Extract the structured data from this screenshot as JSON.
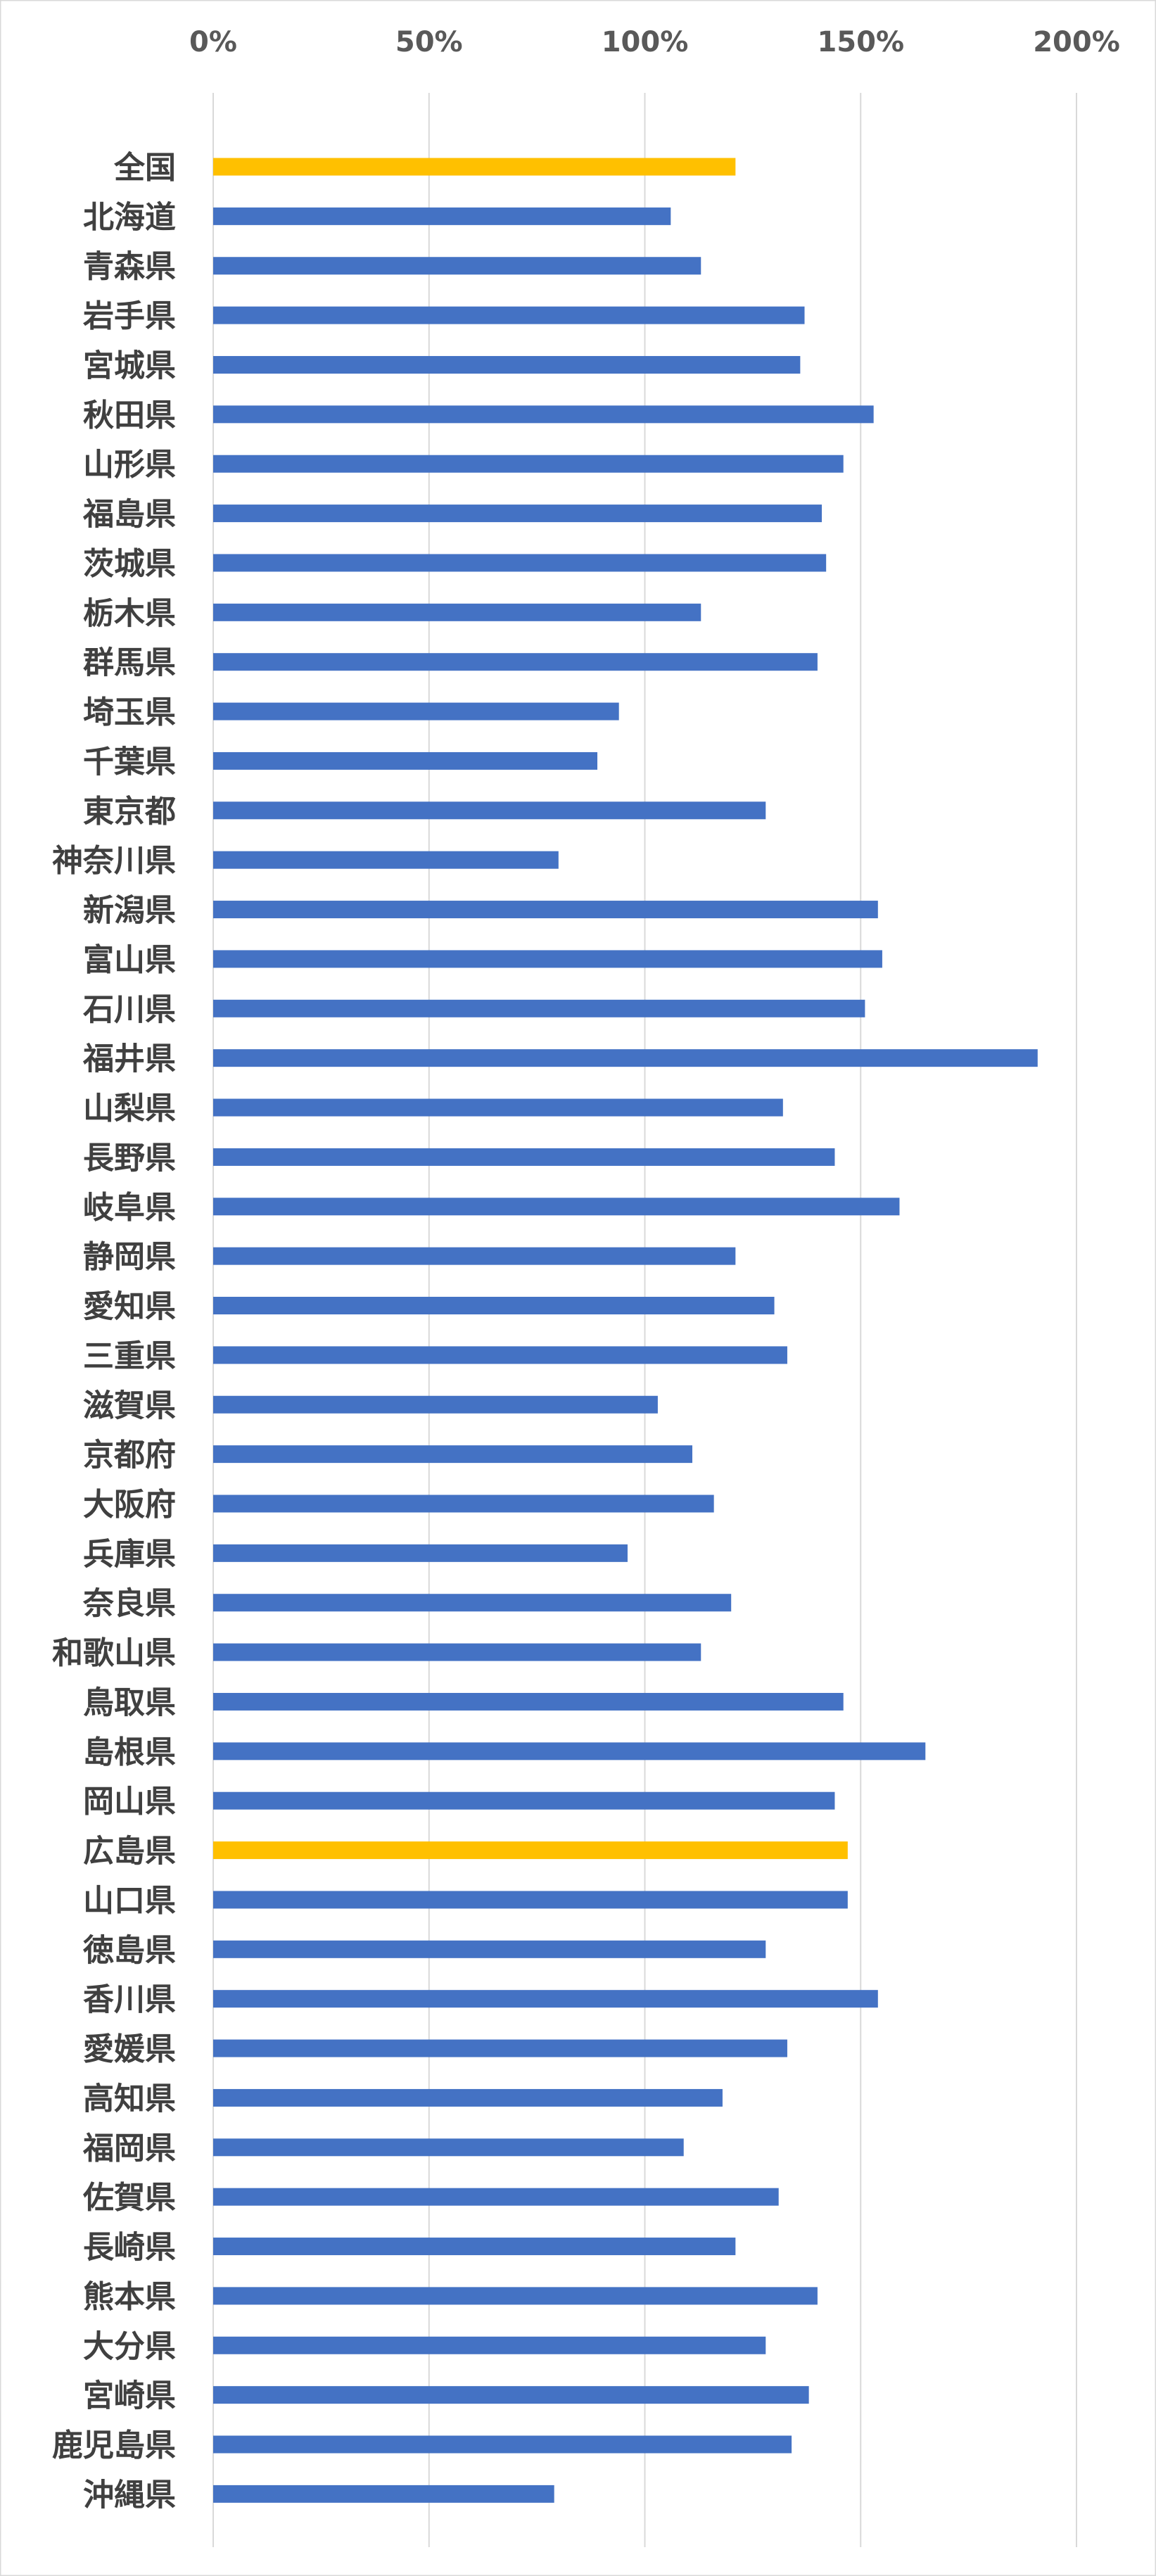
{
  "chart_data": {
    "type": "bar",
    "orientation": "horizontal",
    "title": "",
    "xlabel": "",
    "ylabel": "",
    "xlim": [
      0,
      2
    ],
    "x_ticks": [
      0,
      0.5,
      1.0,
      1.5,
      2.0
    ],
    "x_tick_labels": [
      "0%",
      "50%",
      "100%",
      "150%",
      "200%"
    ],
    "x_axis_position": "top",
    "grid": true,
    "legend": "none",
    "colors": {
      "default": "#4472C4",
      "highlight": "#FFC000",
      "gridline": "#D9D9D9",
      "border": "#D9D9D9"
    },
    "highlighted_categories": [
      "全国",
      "広島県"
    ],
    "categories": [
      "全国",
      "北海道",
      "青森県",
      "岩手県",
      "宮城県",
      "秋田県",
      "山形県",
      "福島県",
      "茨城県",
      "栃木県",
      "群馬県",
      "埼玉県",
      "千葉県",
      "東京都",
      "神奈川県",
      "新潟県",
      "富山県",
      "石川県",
      "福井県",
      "山梨県",
      "長野県",
      "岐阜県",
      "静岡県",
      "愛知県",
      "三重県",
      "滋賀県",
      "京都府",
      "大阪府",
      "兵庫県",
      "奈良県",
      "和歌山県",
      "鳥取県",
      "島根県",
      "岡山県",
      "広島県",
      "山口県",
      "徳島県",
      "香川県",
      "愛媛県",
      "高知県",
      "福岡県",
      "佐賀県",
      "長崎県",
      "熊本県",
      "大分県",
      "宮崎県",
      "鹿児島県",
      "沖縄県"
    ],
    "values": [
      1.21,
      1.06,
      1.13,
      1.37,
      1.36,
      1.53,
      1.46,
      1.41,
      1.42,
      1.13,
      1.4,
      0.94,
      0.89,
      1.28,
      0.8,
      1.54,
      1.55,
      1.51,
      1.91,
      1.32,
      1.44,
      1.59,
      1.21,
      1.3,
      1.33,
      1.03,
      1.11,
      1.16,
      0.96,
      1.2,
      1.13,
      1.46,
      1.65,
      1.44,
      1.47,
      1.47,
      1.28,
      1.54,
      1.33,
      1.18,
      1.09,
      1.31,
      1.21,
      1.4,
      1.28,
      1.38,
      1.34,
      0.79
    ]
  }
}
